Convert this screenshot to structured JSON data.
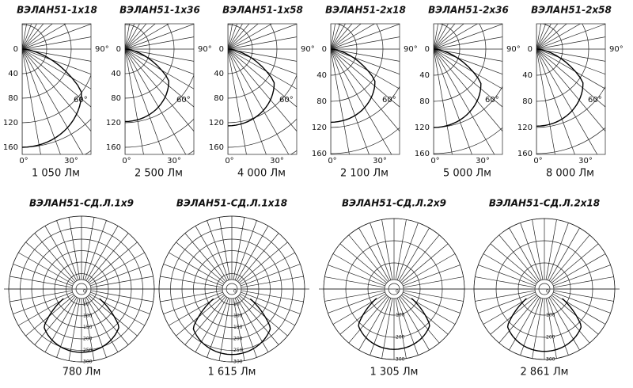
{
  "top_panels": [
    {
      "title": "ВЭЛАН51-1х18",
      "flux": "1 050 Лм",
      "radial_labels": [
        "0",
        "40",
        "80",
        "120",
        "160"
      ],
      "angle_labels": [
        "90°",
        "60°",
        "0°",
        "30°"
      ]
    },
    {
      "title": "ВЭЛАН51-1х36",
      "flux": "2 500 Лм",
      "radial_labels": [
        "0",
        "40",
        "80",
        "120",
        "160"
      ],
      "angle_labels": [
        "90°",
        "60°",
        "0°",
        "30°"
      ]
    },
    {
      "title": "ВЭЛАН51-1х58",
      "flux": "4 000 Лм",
      "radial_labels": [
        "0",
        "40",
        "80",
        "120",
        "160"
      ],
      "angle_labels": [
        "90°",
        "60°",
        "0°",
        "30°"
      ]
    },
    {
      "title": "ВЭЛАН51-2х18",
      "flux": "2 100 Лм",
      "radial_labels": [
        "0",
        "40",
        "80",
        "120",
        "160"
      ],
      "angle_labels": [
        "90°",
        "60°",
        "0°",
        "30°"
      ]
    },
    {
      "title": "ВЭЛАН51-2х36",
      "flux": "5 000 Лм",
      "radial_labels": [
        "0",
        "40",
        "80",
        "120",
        "160"
      ],
      "angle_labels": [
        "90°",
        "60°",
        "0°",
        "30°"
      ]
    },
    {
      "title": "ВЭЛАН51-2х58",
      "flux": "8 000 Лм",
      "radial_labels": [
        "0",
        "40",
        "80",
        "120",
        "160"
      ],
      "angle_labels": [
        "90°",
        "60°",
        "0°",
        "30°"
      ]
    }
  ],
  "bottom_panels": [
    {
      "title": "ВЭЛАН51-СД.Л.1х9",
      "flux": "780 Лм",
      "radial_labels": [
        "0",
        "50",
        "100",
        "150",
        "200",
        "250",
        "300"
      ]
    },
    {
      "title": "ВЭЛАН51-СД.Л.1х18",
      "flux": "1 615 Лм",
      "radial_labels": [
        "0",
        "50",
        "100",
        "150",
        "200",
        "250",
        "300"
      ]
    },
    {
      "title": "ВЭЛАН51-СД.Л.2х9",
      "flux": "1 305 Лм",
      "radial_labels": [
        "0",
        "100",
        "200",
        "300"
      ]
    },
    {
      "title": "ВЭЛАН51-СД.Л.2х18",
      "flux": "2 861 Лм",
      "radial_labels": [
        "0",
        "100",
        "200",
        "300"
      ]
    }
  ]
}
